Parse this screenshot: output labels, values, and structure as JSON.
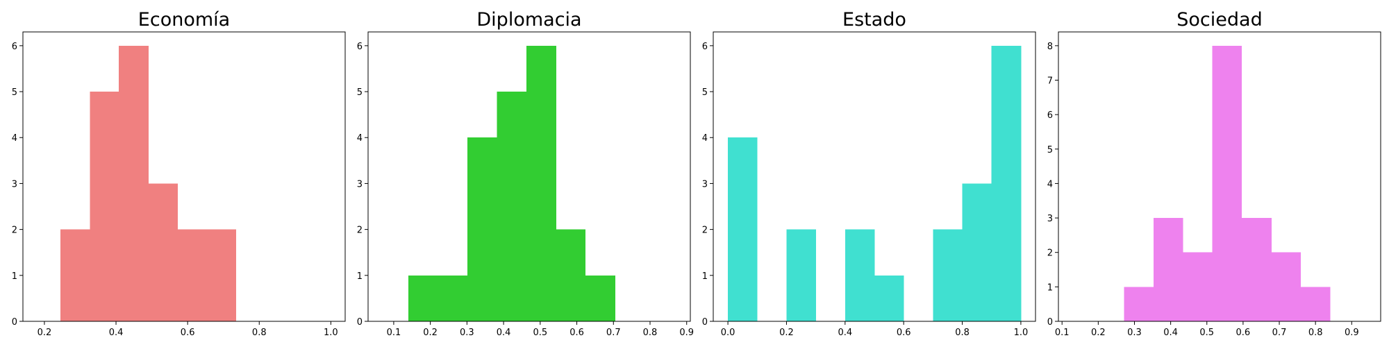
{
  "chart_data": [
    {
      "type": "bar",
      "title": "Economía",
      "color": "#F08080",
      "xlim": [
        0.14,
        1.04
      ],
      "ylim": [
        0,
        6.3
      ],
      "xticks": [
        0.2,
        0.4,
        0.6,
        0.8,
        1.0
      ],
      "xtick_labels": [
        "0.2",
        "0.4",
        "0.6",
        "0.8",
        "1.0"
      ],
      "yticks": [
        0,
        1,
        2,
        3,
        4,
        5,
        6
      ],
      "bins": [
        {
          "x0": 0.245,
          "x1": 0.327,
          "count": 2
        },
        {
          "x0": 0.327,
          "x1": 0.408,
          "count": 5
        },
        {
          "x0": 0.408,
          "x1": 0.49,
          "count": 6
        },
        {
          "x0": 0.49,
          "x1": 0.572,
          "count": 3
        },
        {
          "x0": 0.572,
          "x1": 0.654,
          "count": 2
        },
        {
          "x0": 0.654,
          "x1": 0.735,
          "count": 2
        }
      ]
    },
    {
      "type": "bar",
      "title": "Diplomacia",
      "color": "#32CD32",
      "xlim": [
        0.03,
        0.91
      ],
      "ylim": [
        0,
        6.3
      ],
      "xticks": [
        0.1,
        0.2,
        0.3,
        0.4,
        0.5,
        0.6,
        0.7,
        0.8,
        0.9
      ],
      "xtick_labels": [
        "0.1",
        "0.2",
        "0.3",
        "0.4",
        "0.5",
        "0.6",
        "0.7",
        "0.8",
        "0.9"
      ],
      "yticks": [
        0,
        1,
        2,
        3,
        4,
        5,
        6
      ],
      "bins": [
        {
          "x0": 0.14,
          "x1": 0.221,
          "count": 1
        },
        {
          "x0": 0.221,
          "x1": 0.301,
          "count": 1
        },
        {
          "x0": 0.301,
          "x1": 0.382,
          "count": 4
        },
        {
          "x0": 0.382,
          "x1": 0.462,
          "count": 5
        },
        {
          "x0": 0.462,
          "x1": 0.543,
          "count": 6
        },
        {
          "x0": 0.543,
          "x1": 0.623,
          "count": 2
        },
        {
          "x0": 0.623,
          "x1": 0.704,
          "count": 1
        }
      ]
    },
    {
      "type": "bar",
      "title": "Estado",
      "color": "#40E0D0",
      "xlim": [
        -0.05,
        1.05
      ],
      "ylim": [
        0,
        6.3
      ],
      "xticks": [
        0.0,
        0.2,
        0.4,
        0.6,
        0.8,
        1.0
      ],
      "xtick_labels": [
        "0.0",
        "0.2",
        "0.4",
        "0.6",
        "0.8",
        "1.0"
      ],
      "yticks": [
        0,
        1,
        2,
        3,
        4,
        5,
        6
      ],
      "bins": [
        {
          "x0": 0.0,
          "x1": 0.1,
          "count": 4
        },
        {
          "x0": 0.1,
          "x1": 0.2,
          "count": 0
        },
        {
          "x0": 0.2,
          "x1": 0.3,
          "count": 2
        },
        {
          "x0": 0.3,
          "x1": 0.4,
          "count": 0
        },
        {
          "x0": 0.4,
          "x1": 0.5,
          "count": 2
        },
        {
          "x0": 0.5,
          "x1": 0.6,
          "count": 1
        },
        {
          "x0": 0.6,
          "x1": 0.7,
          "count": 0
        },
        {
          "x0": 0.7,
          "x1": 0.8,
          "count": 2
        },
        {
          "x0": 0.8,
          "x1": 0.9,
          "count": 3
        },
        {
          "x0": 0.9,
          "x1": 1.0,
          "count": 6
        }
      ]
    },
    {
      "type": "bar",
      "title": "Sociedad",
      "color": "#EE82EE",
      "xlim": [
        0.09,
        0.98
      ],
      "ylim": [
        0,
        8.4
      ],
      "xticks": [
        0.1,
        0.2,
        0.3,
        0.4,
        0.5,
        0.6,
        0.7,
        0.8,
        0.9
      ],
      "xtick_labels": [
        "0.1",
        "0.2",
        "0.3",
        "0.4",
        "0.5",
        "0.6",
        "0.7",
        "0.8",
        "0.9"
      ],
      "yticks": [
        0,
        1,
        2,
        3,
        4,
        5,
        6,
        7,
        8
      ],
      "bins": [
        {
          "x0": 0.271,
          "x1": 0.353,
          "count": 1
        },
        {
          "x0": 0.353,
          "x1": 0.434,
          "count": 3
        },
        {
          "x0": 0.434,
          "x1": 0.515,
          "count": 2
        },
        {
          "x0": 0.515,
          "x1": 0.596,
          "count": 8
        },
        {
          "x0": 0.596,
          "x1": 0.678,
          "count": 3
        },
        {
          "x0": 0.678,
          "x1": 0.759,
          "count": 2
        },
        {
          "x0": 0.759,
          "x1": 0.84,
          "count": 1
        }
      ]
    }
  ]
}
